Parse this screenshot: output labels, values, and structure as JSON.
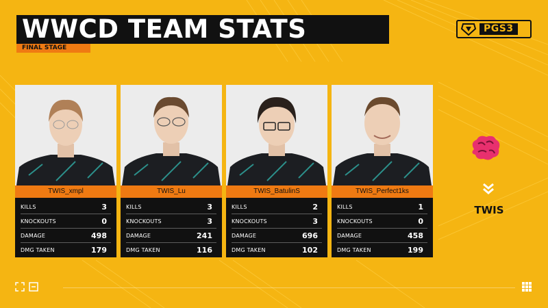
{
  "header": {
    "title": "WWCD TEAM STATS",
    "stage": "FINAL STAGE",
    "event_logo_text": "PGS3"
  },
  "stat_labels": {
    "kills": "KILLS",
    "knockouts": "KNOCKOUTS",
    "damage": "DAMAGE",
    "dmg_taken": "DMG TAKEN"
  },
  "players": [
    {
      "name": "TWIS_xmpl",
      "kills": "3",
      "knockouts": "0",
      "damage": "498",
      "dmg_taken": "179"
    },
    {
      "name": "TWIS_Lu",
      "kills": "3",
      "knockouts": "3",
      "damage": "241",
      "dmg_taken": "116"
    },
    {
      "name": "TWIS_BatulinS",
      "kills": "2",
      "knockouts": "3",
      "damage": "696",
      "dmg_taken": "102"
    },
    {
      "name": "TWIS_Perfect1ks",
      "kills": "1",
      "knockouts": "0",
      "damage": "458",
      "dmg_taken": "199"
    }
  ],
  "team": {
    "name": "TWIS",
    "logo_icon": "brain-logo-icon"
  },
  "footer_icons": [
    "expand-icon",
    "fullscreen-icon",
    "grid-icon"
  ],
  "colors": {
    "background": "#f5b512",
    "accent_orange": "#ef7a12",
    "panel_black": "#111111",
    "team_pink": "#e8306e"
  }
}
